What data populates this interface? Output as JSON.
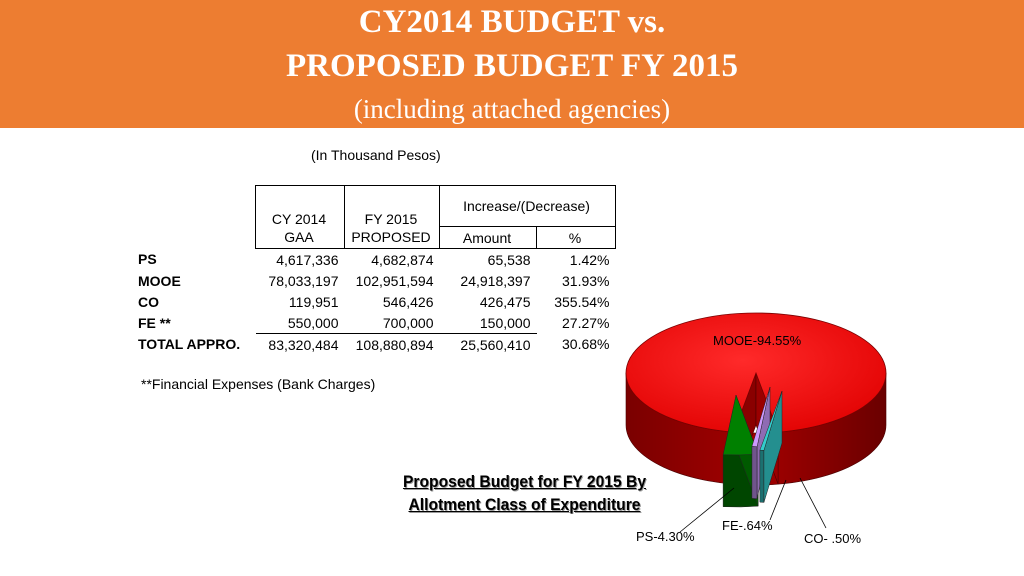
{
  "header": {
    "title_line1": "CY2014 BUDGET vs.",
    "title_line2": "PROPOSED BUDGET FY 2015",
    "subtitle": "(including attached agencies)",
    "banner_color": "#ED7D31"
  },
  "table": {
    "units_note": "(In Thousand Pesos)",
    "headers": {
      "cy2014_line1": "CY 2014",
      "cy2014_line2": "GAA",
      "fy2015_line1": "FY 2015",
      "fy2015_line2": "PROPOSED",
      "change_group": "Increase/(Decrease)",
      "amount": "Amount",
      "percent": "%"
    },
    "rows": [
      {
        "label": "PS",
        "cy2014": "4,617,336",
        "fy2015": "4,682,874",
        "amount": "65,538",
        "percent": "1.42%"
      },
      {
        "label": "MOOE",
        "cy2014": "78,033,197",
        "fy2015": "102,951,594",
        "amount": "24,918,397",
        "percent": "31.93%"
      },
      {
        "label": "CO",
        "cy2014": "119,951",
        "fy2015": "546,426",
        "amount": "426,475",
        "percent": "355.54%"
      },
      {
        "label": "FE **",
        "cy2014": "550,000",
        "fy2015": "700,000",
        "amount": "150,000",
        "percent": "27.27%"
      },
      {
        "label": "TOTAL APPRO.",
        "cy2014": "83,320,484",
        "fy2015": "108,880,894",
        "amount": "25,560,410",
        "percent": "30.68%"
      }
    ],
    "footnote": "**Financial Expenses (Bank Charges)"
  },
  "chart_data": {
    "type": "pie",
    "title": "Proposed Budget for FY 2015 By Allotment Class of Expenditure",
    "slices": [
      {
        "label": "MOOE-94.55%",
        "value": 94.55,
        "color": "#FF0000"
      },
      {
        "label": "PS-4.30%",
        "value": 4.3,
        "color": "#008000"
      },
      {
        "label": "FE-.64%",
        "value": 0.64,
        "color": "#CC99FF"
      },
      {
        "label": "CO- .50%",
        "value": 0.5,
        "color": "#33CCCC"
      }
    ],
    "style": "3d-exploded"
  }
}
